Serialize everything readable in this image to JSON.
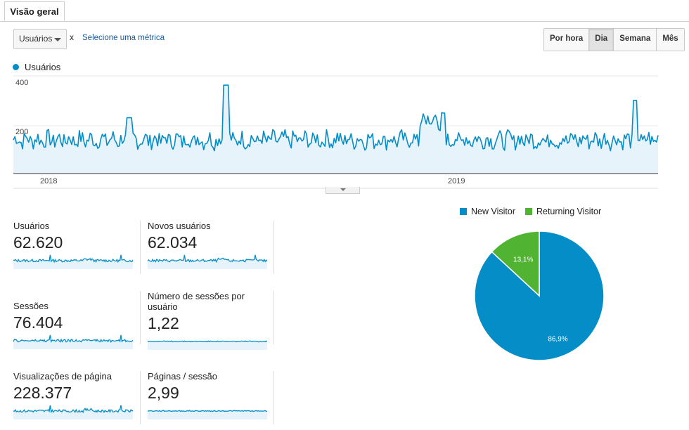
{
  "tabs": [
    {
      "label": "Visão geral"
    }
  ],
  "controls": {
    "metric": "Usuários",
    "remove_label": "x",
    "second_metric": "Selecione uma métrica",
    "granularity": [
      "Por hora",
      "Dia",
      "Semana",
      "Mês"
    ],
    "active_granularity": "Dia"
  },
  "colors": {
    "primary": "#058dc7",
    "secondary": "#50b432",
    "fill": "#e6f3fa"
  },
  "main_chart": {
    "legend": "Usuários",
    "y_ticks": [
      "400",
      "200"
    ],
    "x_ticks": [
      "2018",
      "2019"
    ]
  },
  "metrics": [
    {
      "label": "Usuários",
      "value": "62.620"
    },
    {
      "label": "Novos usuários",
      "value": "62.034"
    },
    {
      "label": "Sessões",
      "value": "76.404"
    },
    {
      "label": "Número de sessões por usuário",
      "value": "1,22"
    },
    {
      "label": "Visualizações de página",
      "value": "228.377"
    },
    {
      "label": "Páginas / sessão",
      "value": "2,99"
    }
  ],
  "chart_data": [
    {
      "type": "area",
      "series": [
        {
          "name": "Usuários"
        }
      ],
      "y_ticks": [
        400,
        200
      ],
      "x_ticks": [
        "2018",
        "2019"
      ],
      "ylim": [
        0,
        420
      ],
      "baseline_approx": 145,
      "peaks": [
        {
          "position": "mid-2018",
          "value": 380
        },
        {
          "position": "early 2019",
          "value": 255
        },
        {
          "position": "late 2019",
          "value": 315
        }
      ]
    },
    {
      "type": "pie",
      "labels": [
        "New Visitor",
        "Returning Visitor"
      ],
      "values": [
        86.9,
        13.1
      ],
      "value_labels": [
        "86,9%",
        "13,1%"
      ],
      "colors": [
        "#058dc7",
        "#50b432"
      ],
      "legend": "top"
    }
  ]
}
